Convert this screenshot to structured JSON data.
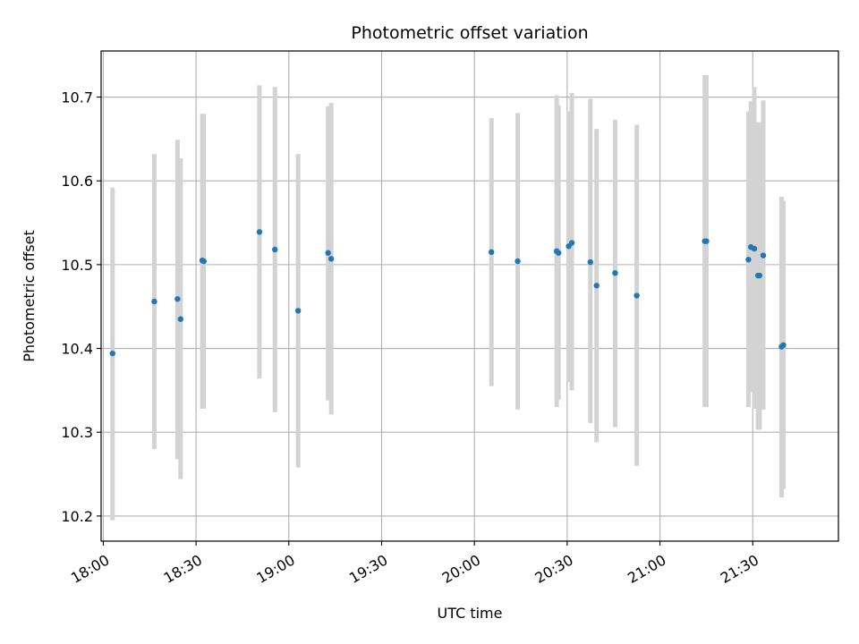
{
  "chart_data": {
    "type": "scatter",
    "title": "Photometric offset variation",
    "xlabel": "UTC time",
    "ylabel": "Photometric offset",
    "x_ticks": [
      "18:00",
      "18:30",
      "19:00",
      "19:30",
      "20:00",
      "20:30",
      "21:00",
      "21:30"
    ],
    "x_tick_minutes": [
      0,
      30,
      60,
      90,
      120,
      150,
      180,
      210
    ],
    "y_ticks": [
      "10.2",
      "10.3",
      "10.4",
      "10.5",
      "10.6",
      "10.7"
    ],
    "y_tick_values": [
      10.2,
      10.3,
      10.4,
      10.5,
      10.6,
      10.7
    ],
    "xlim": [
      "17:59",
      "21:58"
    ],
    "xlim_minutes": [
      -0.7,
      237.7
    ],
    "ylim": [
      10.17,
      10.755
    ],
    "grid": true,
    "point_color": "#1f77b4",
    "errorbar_color": "#d3d3d3",
    "points": [
      {
        "t": "18:03",
        "m": 3.0,
        "y": 10.394,
        "lo": 10.195,
        "hi": 10.592
      },
      {
        "t": "18:16",
        "m": 16.5,
        "y": 10.456,
        "lo": 10.28,
        "hi": 10.632
      },
      {
        "t": "18:24",
        "m": 24.0,
        "y": 10.459,
        "lo": 10.268,
        "hi": 10.649
      },
      {
        "t": "18:25",
        "m": 25.0,
        "y": 10.435,
        "lo": 10.244,
        "hi": 10.627
      },
      {
        "t": "18:32",
        "m": 32.0,
        "y": 10.505,
        "lo": 10.328,
        "hi": 10.68
      },
      {
        "t": "18:32",
        "m": 32.5,
        "y": 10.504,
        "lo": 10.328,
        "hi": 10.68
      },
      {
        "t": "18:50",
        "m": 50.5,
        "y": 10.539,
        "lo": 10.364,
        "hi": 10.714
      },
      {
        "t": "18:55",
        "m": 55.5,
        "y": 10.518,
        "lo": 10.324,
        "hi": 10.712
      },
      {
        "t": "19:03",
        "m": 63.0,
        "y": 10.445,
        "lo": 10.258,
        "hi": 10.632
      },
      {
        "t": "19:13",
        "m": 72.7,
        "y": 10.514,
        "lo": 10.338,
        "hi": 10.689
      },
      {
        "t": "19:14",
        "m": 73.7,
        "y": 10.507,
        "lo": 10.321,
        "hi": 10.693
      },
      {
        "t": "20:05",
        "m": 125.5,
        "y": 10.515,
        "lo": 10.355,
        "hi": 10.675
      },
      {
        "t": "20:14",
        "m": 134.0,
        "y": 10.504,
        "lo": 10.327,
        "hi": 10.681
      },
      {
        "t": "20:27",
        "m": 146.6,
        "y": 10.516,
        "lo": 10.33,
        "hi": 10.702
      },
      {
        "t": "20:27",
        "m": 147.2,
        "y": 10.514,
        "lo": 10.339,
        "hi": 10.69
      },
      {
        "t": "20:30",
        "m": 150.5,
        "y": 10.522,
        "lo": 10.36,
        "hi": 10.683
      },
      {
        "t": "20:31",
        "m": 151.5,
        "y": 10.526,
        "lo": 10.35,
        "hi": 10.705
      },
      {
        "t": "20:37",
        "m": 157.5,
        "y": 10.503,
        "lo": 10.311,
        "hi": 10.698
      },
      {
        "t": "20:39",
        "m": 159.5,
        "y": 10.475,
        "lo": 10.288,
        "hi": 10.662
      },
      {
        "t": "20:45",
        "m": 165.5,
        "y": 10.49,
        "lo": 10.306,
        "hi": 10.673
      },
      {
        "t": "20:52",
        "m": 172.5,
        "y": 10.463,
        "lo": 10.26,
        "hi": 10.667
      },
      {
        "t": "21:14",
        "m": 194.5,
        "y": 10.528,
        "lo": 10.33,
        "hi": 10.726
      },
      {
        "t": "21:14",
        "m": 195.0,
        "y": 10.528,
        "lo": 10.33,
        "hi": 10.726
      },
      {
        "t": "21:28",
        "m": 208.6,
        "y": 10.506,
        "lo": 10.33,
        "hi": 10.683
      },
      {
        "t": "21:29",
        "m": 209.4,
        "y": 10.521,
        "lo": 10.348,
        "hi": 10.695
      },
      {
        "t": "21:30",
        "m": 210.5,
        "y": 10.519,
        "lo": 10.328,
        "hi": 10.712
      },
      {
        "t": "21:32",
        "m": 211.7,
        "y": 10.487,
        "lo": 10.303,
        "hi": 10.67
      },
      {
        "t": "21:32",
        "m": 212.2,
        "y": 10.487,
        "lo": 10.303,
        "hi": 10.67
      },
      {
        "t": "21:33",
        "m": 213.4,
        "y": 10.511,
        "lo": 10.327,
        "hi": 10.696
      },
      {
        "t": "21:39",
        "m": 219.3,
        "y": 10.402,
        "lo": 10.222,
        "hi": 10.581
      },
      {
        "t": "21:40",
        "m": 219.9,
        "y": 10.404,
        "lo": 10.232,
        "hi": 10.576
      }
    ]
  }
}
